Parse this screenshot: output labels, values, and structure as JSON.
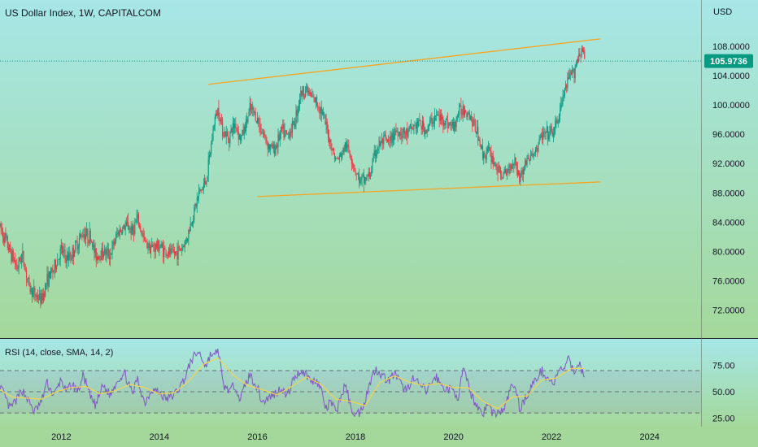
{
  "chart_data": [
    {
      "type": "candlestick",
      "title": "US Dollar Index, 1W, CAPITALCOM",
      "currency": "USD",
      "last_price": "105.9736",
      "y_ticks": [
        "108.0000",
        "104.0000",
        "100.0000",
        "96.0000",
        "92.0000",
        "88.0000",
        "84.0000",
        "80.0000",
        "76.0000",
        "72.0000"
      ],
      "y_tick_values": [
        108,
        104,
        100,
        96,
        92,
        88,
        84,
        80,
        76,
        72
      ],
      "x_ticks": [
        "2012",
        "2014",
        "2016",
        "2018",
        "2020",
        "2022",
        "2024"
      ],
      "x_tick_values": [
        2012,
        2014,
        2016,
        2018,
        2020,
        2022,
        2024
      ],
      "xlim": [
        2010.75,
        2025.05
      ],
      "ylim": [
        68.2,
        114.3
      ],
      "series": [
        {
          "points": [
            [
              2010.75,
              83.4
            ],
            [
              2010.95,
              80.1
            ],
            [
              2011.1,
              77.8
            ],
            [
              2011.2,
              79.6
            ],
            [
              2011.35,
              75.0
            ],
            [
              2011.45,
              74.2
            ],
            [
              2011.6,
              73.4
            ],
            [
              2011.7,
              76.0
            ],
            [
              2011.85,
              77.6
            ],
            [
              2012.0,
              80.2
            ],
            [
              2012.1,
              79.0
            ],
            [
              2012.2,
              79.4
            ],
            [
              2012.35,
              81.5
            ],
            [
              2012.45,
              82.6
            ],
            [
              2012.6,
              81.9
            ],
            [
              2012.7,
              79.3
            ],
            [
              2012.85,
              80.0
            ],
            [
              2013.0,
              79.6
            ],
            [
              2013.15,
              82.6
            ],
            [
              2013.35,
              83.6
            ],
            [
              2013.45,
              82.7
            ],
            [
              2013.55,
              84.4
            ],
            [
              2013.7,
              81.3
            ],
            [
              2013.85,
              80.5
            ],
            [
              2014.0,
              80.8
            ],
            [
              2014.15,
              79.8
            ],
            [
              2014.3,
              79.7
            ],
            [
              2014.45,
              80.4
            ],
            [
              2014.55,
              81.6
            ],
            [
              2014.65,
              84.0
            ],
            [
              2014.8,
              87.8
            ],
            [
              2014.95,
              89.5
            ],
            [
              2015.05,
              94.0
            ],
            [
              2015.12,
              97.8
            ],
            [
              2015.2,
              99.5
            ],
            [
              2015.3,
              96.4
            ],
            [
              2015.4,
              95.5
            ],
            [
              2015.55,
              97.6
            ],
            [
              2015.65,
              95.3
            ],
            [
              2015.75,
              97.0
            ],
            [
              2015.85,
              99.4
            ],
            [
              2015.95,
              98.7
            ],
            [
              2016.1,
              96.3
            ],
            [
              2016.25,
              94.2
            ],
            [
              2016.35,
              94.0
            ],
            [
              2016.5,
              96.5
            ],
            [
              2016.6,
              95.7
            ],
            [
              2016.75,
              97.5
            ],
            [
              2016.88,
              101.5
            ],
            [
              2017.0,
              102.2
            ],
            [
              2017.1,
              101.0
            ],
            [
              2017.2,
              100.4
            ],
            [
              2017.3,
              99.4
            ],
            [
              2017.4,
              97.0
            ],
            [
              2017.5,
              94.6
            ],
            [
              2017.6,
              92.4
            ],
            [
              2017.7,
              93.0
            ],
            [
              2017.8,
              94.5
            ],
            [
              2017.9,
              93.2
            ],
            [
              2018.0,
              91.0
            ],
            [
              2018.1,
              89.5
            ],
            [
              2018.2,
              89.9
            ],
            [
              2018.3,
              90.5
            ],
            [
              2018.4,
              93.5
            ],
            [
              2018.5,
              94.7
            ],
            [
              2018.6,
              95.1
            ],
            [
              2018.7,
              94.7
            ],
            [
              2018.8,
              96.5
            ],
            [
              2018.95,
              96.2
            ],
            [
              2019.05,
              96.0
            ],
            [
              2019.15,
              96.8
            ],
            [
              2019.3,
              97.5
            ],
            [
              2019.45,
              96.4
            ],
            [
              2019.55,
              97.8
            ],
            [
              2019.65,
              98.5
            ],
            [
              2019.75,
              98.1
            ],
            [
              2019.85,
              97.7
            ],
            [
              2020.0,
              96.9
            ],
            [
              2020.1,
              98.9
            ],
            [
              2020.2,
              99.5
            ],
            [
              2020.3,
              99.1
            ],
            [
              2020.4,
              97.5
            ],
            [
              2020.5,
              96.0
            ],
            [
              2020.6,
              93.1
            ],
            [
              2020.7,
              93.8
            ],
            [
              2020.8,
              92.6
            ],
            [
              2020.95,
              90.5
            ],
            [
              2021.05,
              90.4
            ],
            [
              2021.15,
              91.6
            ],
            [
              2021.25,
              92.6
            ],
            [
              2021.35,
              90.0
            ],
            [
              2021.5,
              92.6
            ],
            [
              2021.6,
              93.0
            ],
            [
              2021.7,
              94.1
            ],
            [
              2021.8,
              95.8
            ],
            [
              2021.95,
              96.0
            ],
            [
              2022.05,
              96.4
            ],
            [
              2022.15,
              98.5
            ],
            [
              2022.25,
              101.5
            ],
            [
              2022.35,
              103.5
            ],
            [
              2022.45,
              104.5
            ],
            [
              2022.55,
              106.8
            ],
            [
              2022.62,
              107.8
            ],
            [
              2022.68,
              105.97
            ]
          ]
        }
      ],
      "trendlines": [
        {
          "x1": 2015.0,
          "y1": 102.8,
          "x2": 2023.0,
          "y2": 109.0,
          "color": "#f5a623"
        },
        {
          "x1": 2016.0,
          "y1": 87.5,
          "x2": 2023.0,
          "y2": 89.5,
          "color": "#f5a623"
        }
      ],
      "colors": {
        "up": "#089981",
        "down": "#f23645",
        "badge": "#089981",
        "background_top": "#a6e7e7",
        "background_bottom": "#a4d89b"
      }
    },
    {
      "type": "line",
      "title": "RSI (14, close, SMA, 14, 2)",
      "y_ticks": [
        "75.00",
        "50.00",
        "25.00"
      ],
      "y_tick_values": [
        75,
        50,
        25
      ],
      "ylim": [
        17,
        100
      ],
      "xlim": [
        2010.75,
        2025.05
      ],
      "bands": [
        70,
        50,
        30
      ],
      "series": [
        {
          "color": "#7e57c2",
          "points": [
            [
              2010.75,
              56
            ],
            [
              2010.95,
              34
            ],
            [
              2011.1,
              43
            ],
            [
              2011.2,
              52
            ],
            [
              2011.35,
              40
            ],
            [
              2011.45,
              31
            ],
            [
              2011.6,
              41
            ],
            [
              2011.7,
              59
            ],
            [
              2011.85,
              46
            ],
            [
              2012.0,
              62
            ],
            [
              2012.1,
              49
            ],
            [
              2012.2,
              57
            ],
            [
              2012.35,
              51
            ],
            [
              2012.45,
              66
            ],
            [
              2012.6,
              44
            ],
            [
              2012.7,
              37
            ],
            [
              2012.85,
              56
            ],
            [
              2013.0,
              47
            ],
            [
              2013.15,
              62
            ],
            [
              2013.3,
              67
            ],
            [
              2013.45,
              47
            ],
            [
              2013.55,
              63
            ],
            [
              2013.7,
              39
            ],
            [
              2013.85,
              53
            ],
            [
              2014.0,
              49
            ],
            [
              2014.15,
              43
            ],
            [
              2014.3,
              47
            ],
            [
              2014.45,
              57
            ],
            [
              2014.55,
              66
            ],
            [
              2014.65,
              80
            ],
            [
              2014.8,
              88
            ],
            [
              2014.95,
              74
            ],
            [
              2015.05,
              86
            ],
            [
              2015.12,
              83
            ],
            [
              2015.2,
              91
            ],
            [
              2015.3,
              56
            ],
            [
              2015.45,
              51
            ],
            [
              2015.55,
              57
            ],
            [
              2015.65,
              42
            ],
            [
              2015.75,
              57
            ],
            [
              2015.85,
              66
            ],
            [
              2016.0,
              54
            ],
            [
              2016.1,
              40
            ],
            [
              2016.25,
              45
            ],
            [
              2016.35,
              48
            ],
            [
              2016.5,
              54
            ],
            [
              2016.6,
              45
            ],
            [
              2016.75,
              63
            ],
            [
              2016.88,
              70
            ],
            [
              2017.0,
              67
            ],
            [
              2017.1,
              59
            ],
            [
              2017.2,
              62
            ],
            [
              2017.3,
              52
            ],
            [
              2017.4,
              33
            ],
            [
              2017.5,
              41
            ],
            [
              2017.6,
              30
            ],
            [
              2017.7,
              45
            ],
            [
              2017.8,
              57
            ],
            [
              2017.9,
              36
            ],
            [
              2018.0,
              28
            ],
            [
              2018.1,
              31
            ],
            [
              2018.2,
              43
            ],
            [
              2018.3,
              59
            ],
            [
              2018.4,
              72
            ],
            [
              2018.5,
              68
            ],
            [
              2018.6,
              63
            ],
            [
              2018.7,
              61
            ],
            [
              2018.8,
              68
            ],
            [
              2018.95,
              55
            ],
            [
              2019.05,
              51
            ],
            [
              2019.15,
              63
            ],
            [
              2019.3,
              57
            ],
            [
              2019.45,
              50
            ],
            [
              2019.55,
              59
            ],
            [
              2019.65,
              64
            ],
            [
              2019.75,
              56
            ],
            [
              2019.85,
              53
            ],
            [
              2020.0,
              51
            ],
            [
              2020.1,
              45
            ],
            [
              2020.2,
              72
            ],
            [
              2020.3,
              56
            ],
            [
              2020.4,
              43
            ],
            [
              2020.5,
              36
            ],
            [
              2020.6,
              29
            ],
            [
              2020.7,
              39
            ],
            [
              2020.8,
              30
            ],
            [
              2020.95,
              30
            ],
            [
              2021.05,
              35
            ],
            [
              2021.15,
              52
            ],
            [
              2021.25,
              57
            ],
            [
              2021.35,
              34
            ],
            [
              2021.5,
              47
            ],
            [
              2021.6,
              56
            ],
            [
              2021.7,
              63
            ],
            [
              2021.8,
              70
            ],
            [
              2021.95,
              61
            ],
            [
              2022.05,
              58
            ],
            [
              2022.15,
              69
            ],
            [
              2022.25,
              73
            ],
            [
              2022.35,
              80
            ],
            [
              2022.45,
              69
            ],
            [
              2022.55,
              77
            ],
            [
              2022.62,
              71
            ],
            [
              2022.68,
              66
            ]
          ]
        },
        {
          "color": "#f2d44f",
          "points": [
            [
              2010.75,
              52
            ],
            [
              2011.0,
              45
            ],
            [
              2011.3,
              44
            ],
            [
              2011.6,
              43
            ],
            [
              2011.9,
              50
            ],
            [
              2012.2,
              54
            ],
            [
              2012.5,
              55
            ],
            [
              2012.8,
              48
            ],
            [
              2013.1,
              51
            ],
            [
              2013.4,
              57
            ],
            [
              2013.7,
              54
            ],
            [
              2014.0,
              48
            ],
            [
              2014.3,
              49
            ],
            [
              2014.6,
              60
            ],
            [
              2014.9,
              76
            ],
            [
              2015.2,
              82
            ],
            [
              2015.5,
              66
            ],
            [
              2015.8,
              56
            ],
            [
              2016.1,
              52
            ],
            [
              2016.4,
              47
            ],
            [
              2016.7,
              55
            ],
            [
              2017.0,
              64
            ],
            [
              2017.3,
              57
            ],
            [
              2017.6,
              43
            ],
            [
              2017.9,
              41
            ],
            [
              2018.2,
              37
            ],
            [
              2018.5,
              59
            ],
            [
              2018.8,
              65
            ],
            [
              2019.1,
              59
            ],
            [
              2019.4,
              56
            ],
            [
              2019.7,
              58
            ],
            [
              2020.0,
              54
            ],
            [
              2020.3,
              54
            ],
            [
              2020.6,
              41
            ],
            [
              2020.9,
              34
            ],
            [
              2021.2,
              45
            ],
            [
              2021.5,
              46
            ],
            [
              2021.8,
              61
            ],
            [
              2022.1,
              63
            ],
            [
              2022.4,
              72
            ],
            [
              2022.68,
              72
            ]
          ]
        }
      ]
    }
  ]
}
